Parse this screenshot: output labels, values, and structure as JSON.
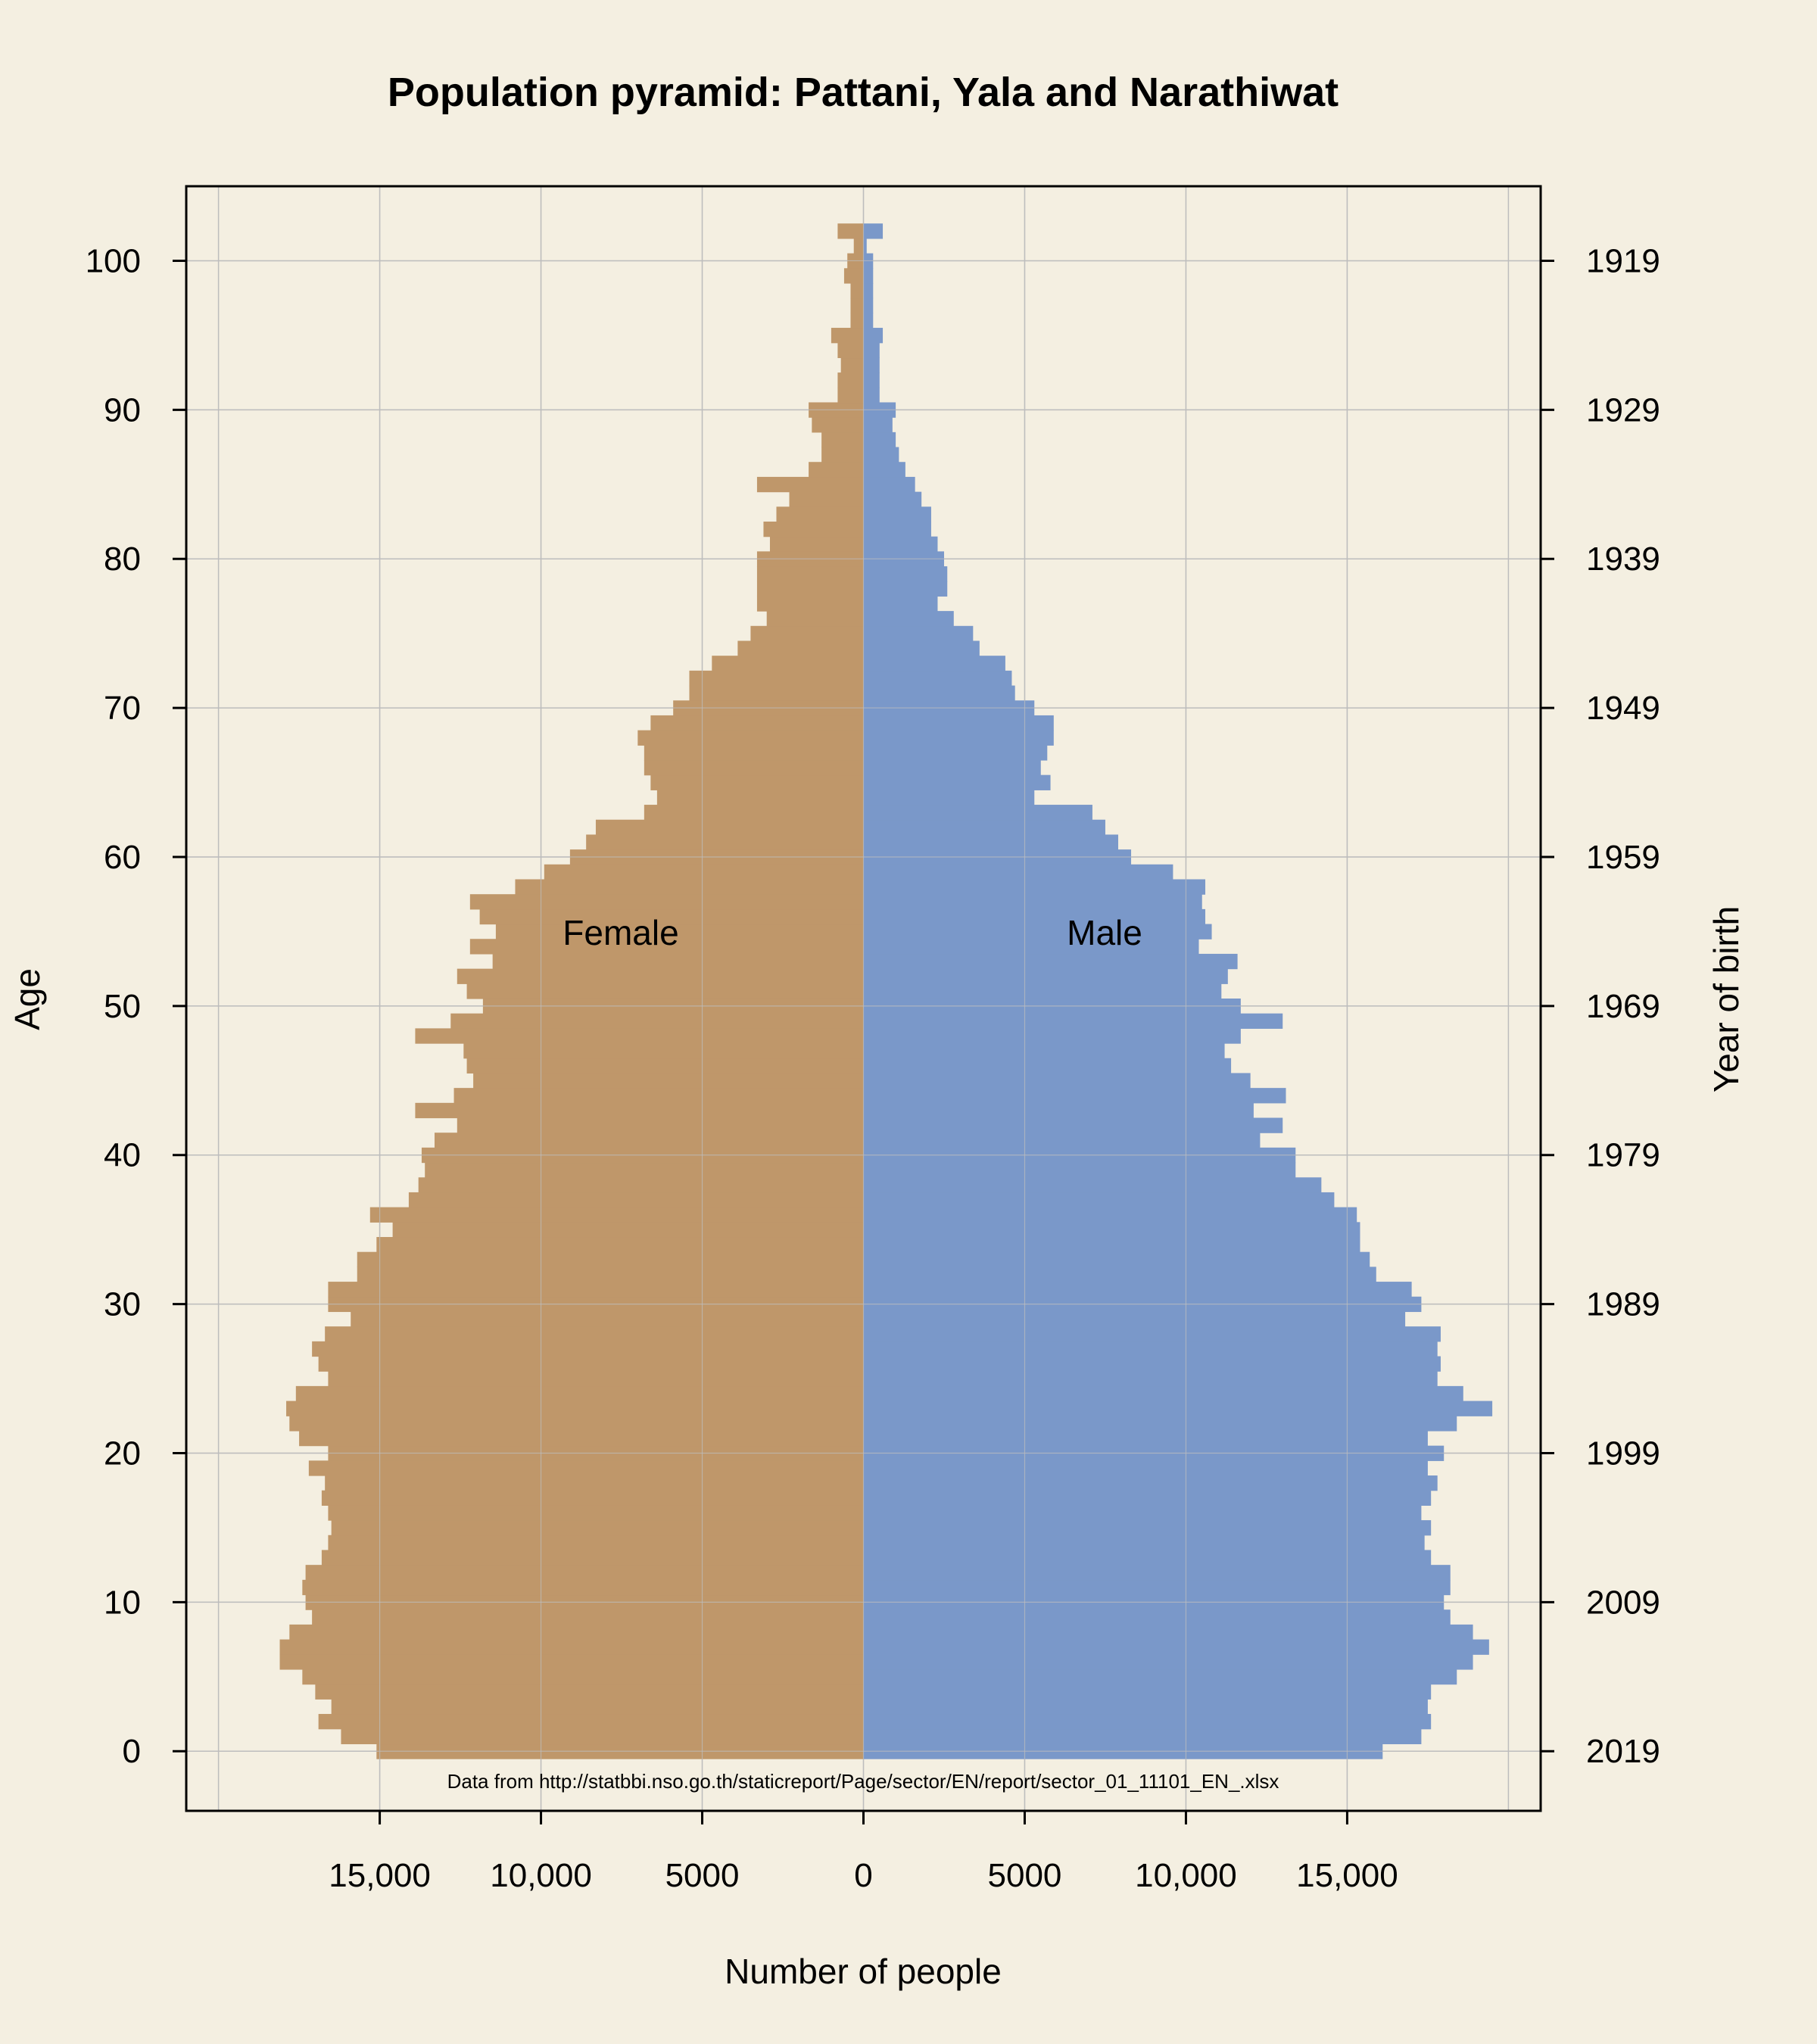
{
  "chart_data": {
    "type": "bar",
    "orientation": "horizontal-pyramid",
    "title": "Population pyramid: Pattani, Yala and Narathiwat",
    "xlabel": "Number of people",
    "ylabel": "Age",
    "y2label": "Year of birth",
    "xlim": [
      -21000,
      21000
    ],
    "ylim": [
      -4,
      105
    ],
    "x_ticks": [
      -15000,
      -10000,
      -5000,
      0,
      5000,
      10000,
      15000
    ],
    "x_tick_labels": [
      "15,000",
      "10,000",
      "5000",
      "0",
      "5000",
      "10,000",
      "15,000"
    ],
    "y_ticks": [
      0,
      10,
      20,
      30,
      40,
      50,
      60,
      70,
      80,
      90,
      100
    ],
    "y_tick_labels": [
      "0",
      "10",
      "20",
      "30",
      "40",
      "50",
      "60",
      "70",
      "80",
      "90",
      "100"
    ],
    "y2_tick_labels": [
      "2019",
      "2009",
      "1999",
      "1989",
      "1979",
      "1969",
      "1959",
      "1949",
      "1939",
      "1929",
      "1919"
    ],
    "grid": true,
    "series_labels": {
      "female": "Female",
      "male": "Male"
    },
    "note": "Data from http://statbbi.nso.go.th/staticreport/Page/sector/EN/report/sector_01_11101_EN_.xlsx",
    "colors": {
      "female": "#bf976a",
      "male": "#7a98c9",
      "background": "#f4efe1",
      "grid": "#bdbdbd"
    },
    "ages": [
      0,
      1,
      2,
      3,
      4,
      5,
      6,
      7,
      8,
      9,
      10,
      11,
      12,
      13,
      14,
      15,
      16,
      17,
      18,
      19,
      20,
      21,
      22,
      23,
      24,
      25,
      26,
      27,
      28,
      29,
      30,
      31,
      32,
      33,
      34,
      35,
      36,
      37,
      38,
      39,
      40,
      41,
      42,
      43,
      44,
      45,
      46,
      47,
      48,
      49,
      50,
      51,
      52,
      53,
      54,
      55,
      56,
      57,
      58,
      59,
      60,
      61,
      62,
      63,
      64,
      65,
      66,
      67,
      68,
      69,
      70,
      71,
      72,
      73,
      74,
      75,
      76,
      77,
      78,
      79,
      80,
      81,
      82,
      83,
      84,
      85,
      86,
      87,
      88,
      89,
      90,
      91,
      92,
      93,
      94,
      95,
      96,
      97,
      98,
      99,
      100,
      101,
      102
    ],
    "series": [
      {
        "name": "Female",
        "values": [
          15100,
          16200,
          16900,
          16500,
          17000,
          17400,
          18100,
          18100,
          17800,
          17100,
          17300,
          17400,
          17300,
          16800,
          16600,
          16500,
          16600,
          16800,
          16700,
          17200,
          16600,
          17500,
          17800,
          17900,
          17600,
          16600,
          16900,
          17100,
          16700,
          15900,
          16600,
          16600,
          15700,
          15700,
          15100,
          14600,
          15300,
          14100,
          13800,
          13600,
          13700,
          13300,
          12600,
          13900,
          12700,
          12100,
          12300,
          12400,
          13900,
          12800,
          11800,
          12300,
          12600,
          11500,
          12200,
          11400,
          11900,
          12200,
          10800,
          9900,
          9100,
          8600,
          8300,
          6800,
          6400,
          6600,
          6800,
          6800,
          7000,
          6600,
          5900,
          5400,
          5400,
          4700,
          3900,
          3500,
          3000,
          3300,
          3300,
          3300,
          3300,
          2900,
          3100,
          2700,
          2300,
          3300,
          1700,
          1300,
          1300,
          1600,
          1700,
          800,
          800,
          700,
          800,
          1000,
          400,
          400,
          400,
          600,
          500,
          300,
          800
        ]
      },
      {
        "name": "Male",
        "values": [
          16100,
          17300,
          17600,
          17500,
          17600,
          18400,
          18900,
          19400,
          18900,
          18200,
          18000,
          18200,
          18200,
          17600,
          17400,
          17600,
          17300,
          17600,
          17800,
          17500,
          18000,
          17500,
          18400,
          19500,
          18600,
          17800,
          17900,
          17800,
          17900,
          16800,
          17300,
          17000,
          15900,
          15700,
          15400,
          15400,
          15300,
          14600,
          14200,
          13400,
          13400,
          12300,
          13000,
          12100,
          13100,
          12000,
          11400,
          11200,
          11700,
          13000,
          11700,
          11100,
          11300,
          11600,
          10400,
          10800,
          10600,
          10500,
          10600,
          9600,
          8300,
          7900,
          7500,
          7100,
          5300,
          5800,
          5500,
          5700,
          5900,
          5900,
          5300,
          4700,
          4600,
          4400,
          3600,
          3400,
          2800,
          2300,
          2600,
          2600,
          2500,
          2300,
          2100,
          2100,
          1800,
          1600,
          1300,
          1100,
          1000,
          900,
          1000,
          500,
          500,
          500,
          500,
          600,
          300,
          300,
          300,
          300,
          300,
          100,
          600
        ]
      }
    ]
  }
}
